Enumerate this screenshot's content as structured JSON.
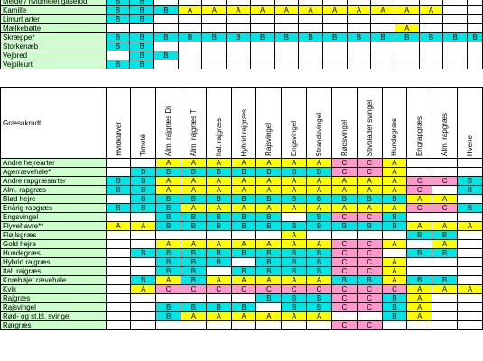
{
  "top_rows": [
    {
      "label": "Melde / hvidmelet gåsefod",
      "cells": [
        "B",
        "B",
        "",
        "",
        "",
        "",
        "",
        "",
        "",
        "",
        "",
        "",
        "",
        "",
        "",
        ""
      ]
    },
    {
      "label": "Kamille",
      "cells": [
        "B",
        "B",
        "B",
        "A",
        "A",
        "A",
        "A",
        "A",
        "A",
        "A",
        "A",
        "A",
        "A",
        "A",
        "",
        ""
      ]
    },
    {
      "label": "Limurt arter",
      "cells": [
        "B",
        "B",
        "",
        "",
        "",
        "",
        "",
        "",
        "",
        "",
        "",
        "",
        "",
        "",
        "",
        ""
      ]
    },
    {
      "label": "Mælkebøtte",
      "cells": [
        "",
        "",
        "",
        "",
        "",
        "",
        "",
        "",
        "",
        "",
        "",
        "",
        "A",
        "",
        "",
        ""
      ]
    },
    {
      "label": "Skræppe*",
      "cells": [
        "B",
        "B",
        "B",
        "B",
        "B",
        "B",
        "B",
        "B",
        "B",
        "B",
        "B",
        "B",
        "B",
        "B",
        "B",
        "B"
      ]
    },
    {
      "label": "Storkenæb",
      "cells": [
        "B",
        "B",
        "",
        "",
        "",
        "",
        "",
        "",
        "",
        "",
        "",
        "",
        "",
        "",
        "",
        ""
      ]
    },
    {
      "label": "Vejbred",
      "cells": [
        "",
        "B",
        "B",
        "",
        "",
        "",
        "",
        "",
        "",
        "",
        "",
        "",
        "",
        "",
        "",
        ""
      ]
    },
    {
      "label": "Vejpileurt",
      "cells": [
        "B",
        "B",
        "",
        "",
        "",
        "",
        "",
        "",
        "",
        "",
        "",
        "",
        "",
        "",
        "",
        ""
      ]
    }
  ],
  "main": {
    "corner_label": "Græsukrudt",
    "columns": [
      "Hvidkløver",
      "Timoté",
      "Alm. rajgræs Di",
      "Alm. rajgræs T",
      "Ital. rajgræs",
      "Hybrid rajgræs",
      "Rajsvingel",
      "Engsvingel",
      "Strandsvingel",
      "Rødsvingel",
      "Stivbladet svingel",
      "Hundegræs",
      "Engrapgræs",
      "Alm. rapgræs",
      "Hvene"
    ],
    "rows": [
      {
        "label": "Andre hejrearter",
        "cells": [
          "",
          "",
          "A",
          "A",
          "A",
          "A",
          "A",
          "A",
          "A",
          "C",
          "C",
          "A",
          "",
          "",
          ""
        ]
      },
      {
        "label": "Agerrævehale*",
        "cells": [
          "",
          "B",
          "B",
          "B",
          "B",
          "B",
          "B",
          "B",
          "B",
          "C",
          "C",
          "A",
          "",
          "",
          ""
        ]
      },
      {
        "label": "Andre rapgræsarter",
        "cells": [
          "B",
          "B",
          "A",
          "A",
          "A",
          "A",
          "A",
          "A",
          "A",
          "A",
          "A",
          "A",
          "C",
          "C",
          "B"
        ]
      },
      {
        "label": "Alm. rapgræs",
        "cells": [
          "B",
          "B",
          "A",
          "A",
          "A",
          "A",
          "A",
          "A",
          "A",
          "A",
          "A",
          "A",
          "C",
          "",
          "B"
        ]
      },
      {
        "label": "Blød hejre",
        "cells": [
          "",
          "B",
          "B",
          "B",
          "B",
          "B",
          "B",
          "B",
          "B",
          "B",
          "B",
          "B",
          "A",
          "A",
          ""
        ]
      },
      {
        "label": "Enårig rapgræs",
        "cells": [
          "B",
          "B",
          "B",
          "A",
          "A",
          "A",
          "A",
          "A",
          "A",
          "A",
          "A",
          "A",
          "C",
          "C",
          "B"
        ]
      },
      {
        "label": "Engsvingel",
        "cells": [
          "",
          "",
          "B",
          "B",
          "B",
          "B",
          "B",
          "",
          "B",
          "C",
          "C",
          "B",
          "",
          "",
          ""
        ]
      },
      {
        "label": "Flyvehavre**",
        "cells": [
          "A",
          "A",
          "B",
          "B",
          "B",
          "B",
          "B",
          "B",
          "B",
          "B",
          "B",
          "B",
          "A",
          "A",
          "A"
        ]
      },
      {
        "label": "Fløjlsgræs",
        "cells": [
          "",
          "",
          "",
          "",
          "",
          "",
          "",
          "A",
          "",
          "",
          "",
          "",
          "B",
          "B",
          ""
        ]
      },
      {
        "label": "Gold hejre",
        "cells": [
          "",
          "",
          "A",
          "A",
          "A",
          "A",
          "A",
          "A",
          "A",
          "C",
          "C",
          "A",
          "",
          "A",
          ""
        ]
      },
      {
        "label": "Hundegræs",
        "cells": [
          "",
          "B",
          "B",
          "B",
          "B",
          "B",
          "B",
          "B",
          "B",
          "C",
          "C",
          "",
          "B",
          "B",
          ""
        ]
      },
      {
        "label": "Hybrid rajgræs",
        "cells": [
          "",
          "",
          "B",
          "B",
          "B",
          "",
          "B",
          "B",
          "B",
          "C",
          "C",
          "A",
          "",
          "",
          ""
        ]
      },
      {
        "label": "Ital. rajgræs",
        "cells": [
          "",
          "",
          "B",
          "B",
          "",
          "B",
          "B",
          "B",
          "B",
          "C",
          "C",
          "A",
          "",
          "",
          ""
        ]
      },
      {
        "label": "Knæbøjet rævehale",
        "cells": [
          "",
          "B",
          "A",
          "B",
          "A",
          "A",
          "A",
          "A",
          "A",
          "B",
          "B",
          "A",
          "B",
          "B",
          ""
        ]
      },
      {
        "label": "Kvik",
        "cells": [
          "",
          "A",
          "C",
          "C",
          "C",
          "C",
          "C",
          "C",
          "C",
          "C",
          "C",
          "C",
          "A",
          "A",
          "A"
        ]
      },
      {
        "label": "Rajgræs",
        "cells": [
          "",
          "",
          "",
          "",
          "",
          "",
          "B",
          "B",
          "B",
          "C",
          "C",
          "B",
          "A",
          "",
          ""
        ]
      },
      {
        "label": "Rajsvingel",
        "cells": [
          "",
          "",
          "B",
          "B",
          "B",
          "B",
          "",
          "B",
          "B",
          "C",
          "C",
          "B",
          "A",
          "",
          ""
        ]
      },
      {
        "label": "Rød- og st.bl. svingel",
        "cells": [
          "",
          "",
          "B",
          "A",
          "A",
          "A",
          "A",
          "A",
          "A",
          "",
          "",
          "B",
          "A",
          "",
          ""
        ]
      },
      {
        "label": "Rørgræs",
        "cells": [
          "",
          "",
          "",
          "",
          "",
          "",
          "",
          "",
          "",
          "C",
          "C",
          "",
          "",
          "",
          ""
        ]
      }
    ]
  },
  "colors": {
    "A": "#ffff00",
    "B": "#00e6e6",
    "C": "#ff99cc",
    "label_bg": "#ccffcc"
  }
}
